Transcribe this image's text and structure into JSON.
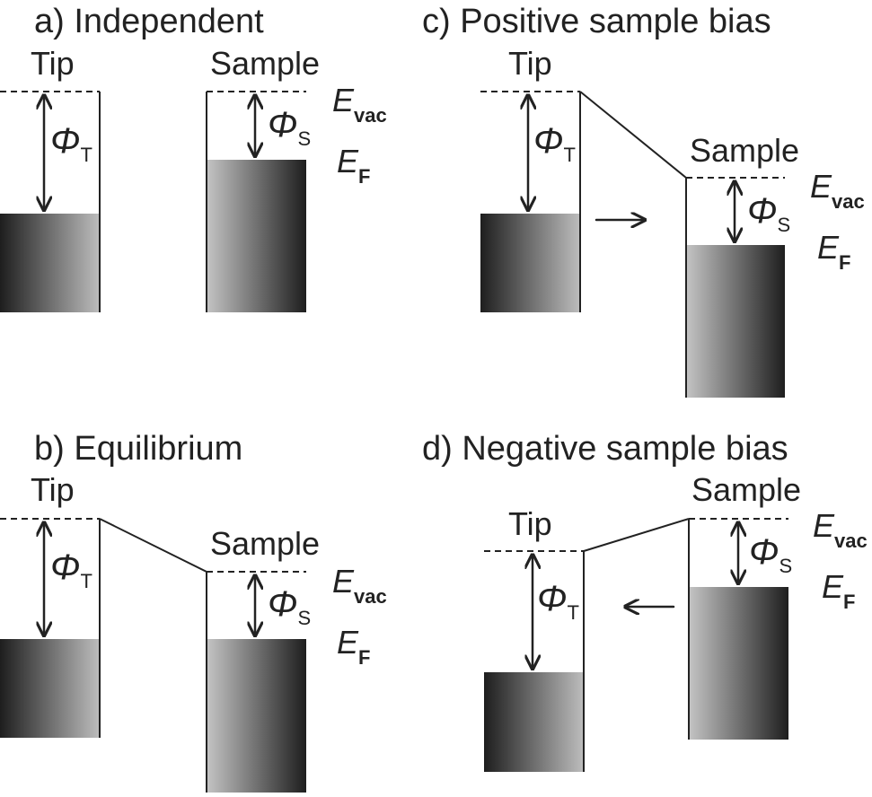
{
  "panels": {
    "a": {
      "title": "a) Independent",
      "tip_label": "Tip",
      "sample_label": "Sample",
      "phi_tip": {
        "symbol": "Φ",
        "sub": "T"
      },
      "phi_sample": {
        "symbol": "Φ",
        "sub": "S"
      },
      "e_vac": {
        "symbol": "E",
        "sub": "vac"
      },
      "e_f": {
        "symbol": "E",
        "sub": "F"
      }
    },
    "b": {
      "title": "b) Equilibrium",
      "tip_label": "Tip",
      "sample_label": "Sample",
      "phi_tip": {
        "symbol": "Φ",
        "sub": "T"
      },
      "phi_sample": {
        "symbol": "Φ",
        "sub": "S"
      },
      "e_vac": {
        "symbol": "E",
        "sub": "vac"
      },
      "e_f": {
        "symbol": "E",
        "sub": "F"
      }
    },
    "c": {
      "title": "c) Positive sample bias",
      "tip_label": "Tip",
      "sample_label": "Sample",
      "phi_tip": {
        "symbol": "Φ",
        "sub": "T"
      },
      "phi_sample": {
        "symbol": "Φ",
        "sub": "S"
      },
      "e_vac": {
        "symbol": "E",
        "sub": "vac"
      },
      "e_f": {
        "symbol": "E",
        "sub": "F"
      },
      "electron_flow": "tip-to-sample"
    },
    "d": {
      "title": "d) Negative sample bias",
      "tip_label": "Tip",
      "sample_label": "Sample",
      "phi_tip": {
        "symbol": "Φ",
        "sub": "T"
      },
      "phi_sample": {
        "symbol": "Φ",
        "sub": "S"
      },
      "e_vac": {
        "symbol": "E",
        "sub": "vac"
      },
      "e_f": {
        "symbol": "E",
        "sub": "F"
      },
      "electron_flow": "sample-to-tip"
    }
  },
  "colors": {
    "ink": "#222222",
    "metal_dark": "#1e1e1e",
    "metal_light": "#bdbdbd"
  }
}
